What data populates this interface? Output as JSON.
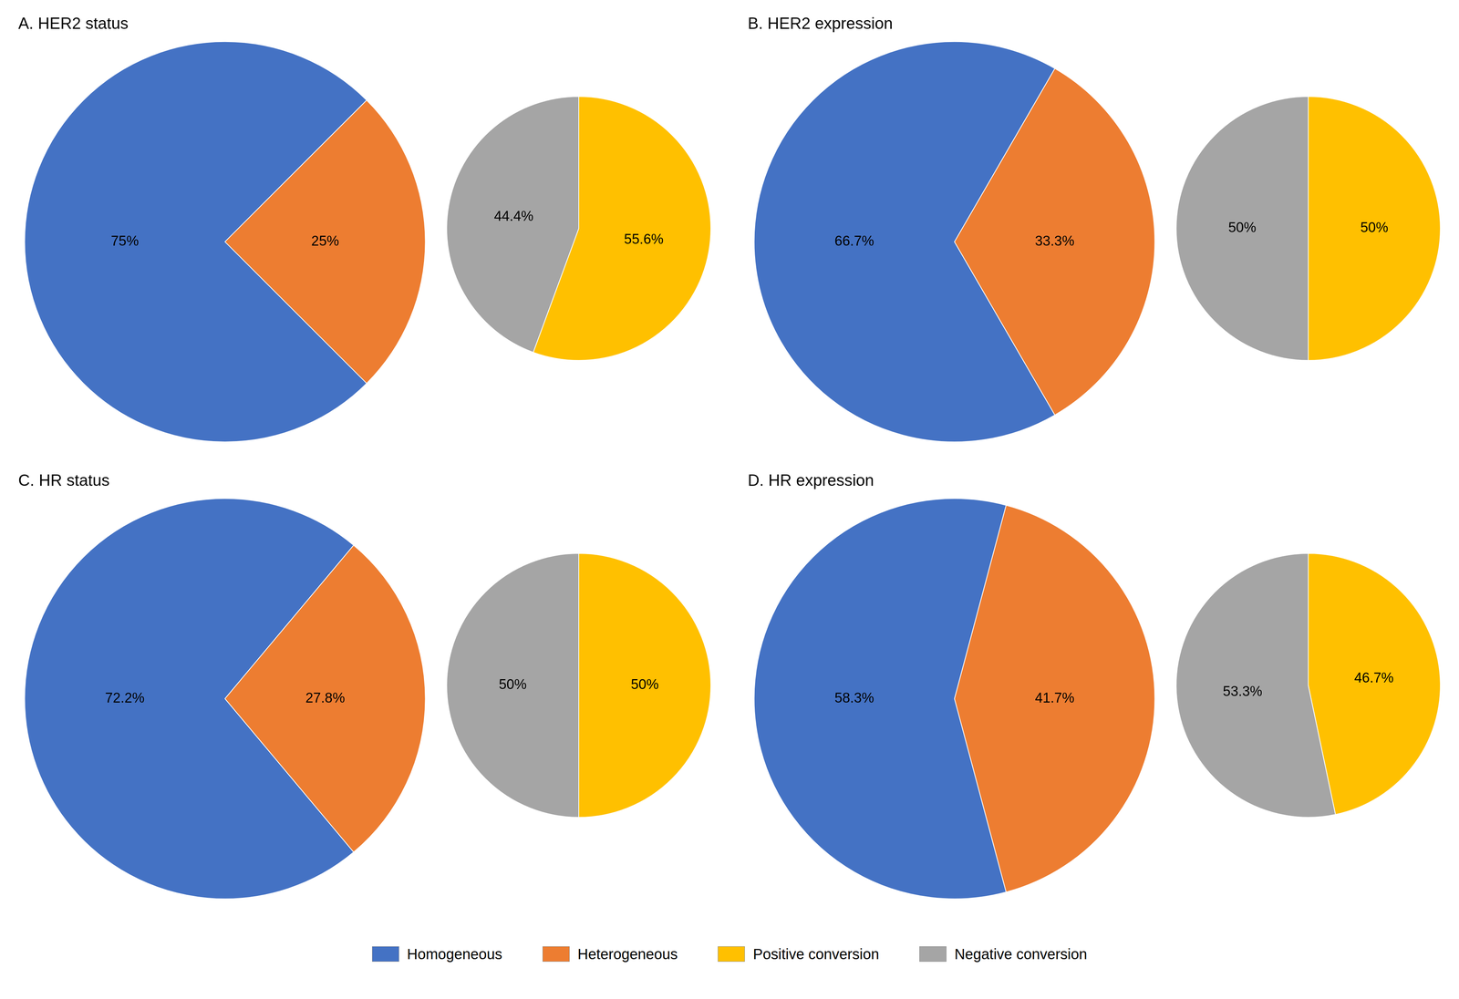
{
  "chart_data": [
    {
      "type": "pie",
      "title": "A. HER2 status",
      "categories": [
        "Homogeneous",
        "Heterogeneous"
      ],
      "values": [
        75,
        25
      ],
      "value_labels": [
        "75%",
        "25%"
      ],
      "colors": [
        "#4472C4",
        "#ED7D31"
      ],
      "data_labels": true,
      "legend": "bottom"
    },
    {
      "type": "pie",
      "categories": [
        "Positive conversion",
        "Negative conversion"
      ],
      "values": [
        55.6,
        44.4
      ],
      "value_labels": [
        "55.6%",
        "44.4%"
      ],
      "colors": [
        "#FFC000",
        "#A5A5A5"
      ],
      "data_labels": true,
      "legend": "bottom"
    },
    {
      "type": "pie",
      "title": "B. HER2 expression",
      "categories": [
        "Homogeneous",
        "Heterogeneous"
      ],
      "values": [
        66.7,
        33.3
      ],
      "value_labels": [
        "66.7%",
        "33.3%"
      ],
      "colors": [
        "#4472C4",
        "#ED7D31"
      ],
      "data_labels": true,
      "legend": "bottom"
    },
    {
      "type": "pie",
      "categories": [
        "Positive conversion",
        "Negative conversion"
      ],
      "values": [
        50,
        50
      ],
      "value_labels": [
        "50%",
        "50%"
      ],
      "colors": [
        "#FFC000",
        "#A5A5A5"
      ],
      "data_labels": true,
      "legend": "bottom"
    },
    {
      "type": "pie",
      "title": "C. HR status",
      "categories": [
        "Homogeneous",
        "Heterogeneous"
      ],
      "values": [
        72.2,
        27.8
      ],
      "value_labels": [
        "72.2%",
        "27.8%"
      ],
      "colors": [
        "#4472C4",
        "#ED7D31"
      ],
      "data_labels": true,
      "legend": "bottom"
    },
    {
      "type": "pie",
      "categories": [
        "Positive conversion",
        "Negative conversion"
      ],
      "values": [
        50,
        50
      ],
      "value_labels": [
        "50%",
        "50%"
      ],
      "colors": [
        "#FFC000",
        "#A5A5A5"
      ],
      "data_labels": true,
      "legend": "bottom"
    },
    {
      "type": "pie",
      "title": "D. HR expression",
      "categories": [
        "Homogeneous",
        "Heterogeneous"
      ],
      "values": [
        58.3,
        41.7
      ],
      "value_labels": [
        "58.3%",
        "41.7%"
      ],
      "colors": [
        "#4472C4",
        "#ED7D31"
      ],
      "data_labels": true,
      "legend": "bottom"
    },
    {
      "type": "pie",
      "categories": [
        "Positive conversion",
        "Negative conversion"
      ],
      "values": [
        46.7,
        53.3
      ],
      "value_labels": [
        "46.7%",
        "53.3%"
      ],
      "colors": [
        "#FFC000",
        "#A5A5A5"
      ],
      "data_labels": true,
      "legend": "bottom"
    }
  ]
}
